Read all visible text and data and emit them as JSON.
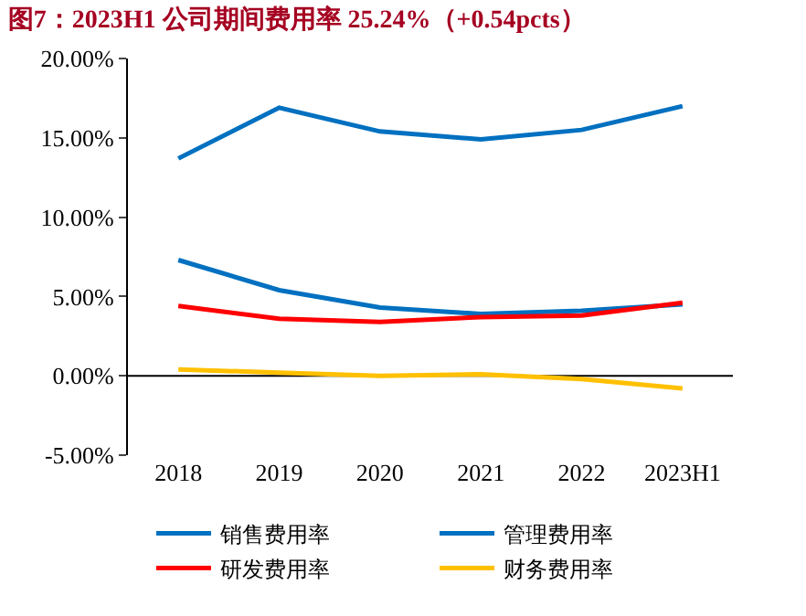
{
  "chart_data": {
    "type": "line",
    "title": "图7：2023H1 公司期间费用率 25.24%（+0.54pcts）",
    "categories": [
      "2018",
      "2019",
      "2020",
      "2021",
      "2022",
      "2023H1"
    ],
    "series": [
      {
        "name": "销售费用率",
        "color": "#0070c0",
        "values": [
          13.7,
          16.9,
          15.4,
          14.9,
          15.5,
          17.0
        ]
      },
      {
        "name": "管理费用率",
        "color": "#0070c0",
        "values": [
          7.3,
          5.4,
          4.3,
          3.9,
          4.1,
          4.5
        ]
      },
      {
        "name": "研发费用率",
        "color": "#ff0000",
        "values": [
          4.4,
          3.6,
          3.4,
          3.7,
          3.8,
          4.6
        ]
      },
      {
        "name": "财务费用率",
        "color": "#ffc000",
        "values": [
          0.4,
          0.2,
          0.0,
          0.1,
          -0.2,
          -0.8
        ]
      }
    ],
    "ylim": [
      -5,
      20
    ],
    "yticks": [
      {
        "value": -5,
        "label": "-5.00%"
      },
      {
        "value": 0,
        "label": "0.00%"
      },
      {
        "value": 5,
        "label": "5.00%"
      },
      {
        "value": 10,
        "label": "10.00%"
      },
      {
        "value": 15,
        "label": "15.00%"
      },
      {
        "value": 20,
        "label": "20.00%"
      }
    ],
    "ref_lines": [
      {
        "axis": "y",
        "value": 0,
        "color": "#000000",
        "line_style": "solid"
      }
    ],
    "grid": false,
    "legend": "bottom",
    "marker": "none",
    "line_style": "solid"
  }
}
